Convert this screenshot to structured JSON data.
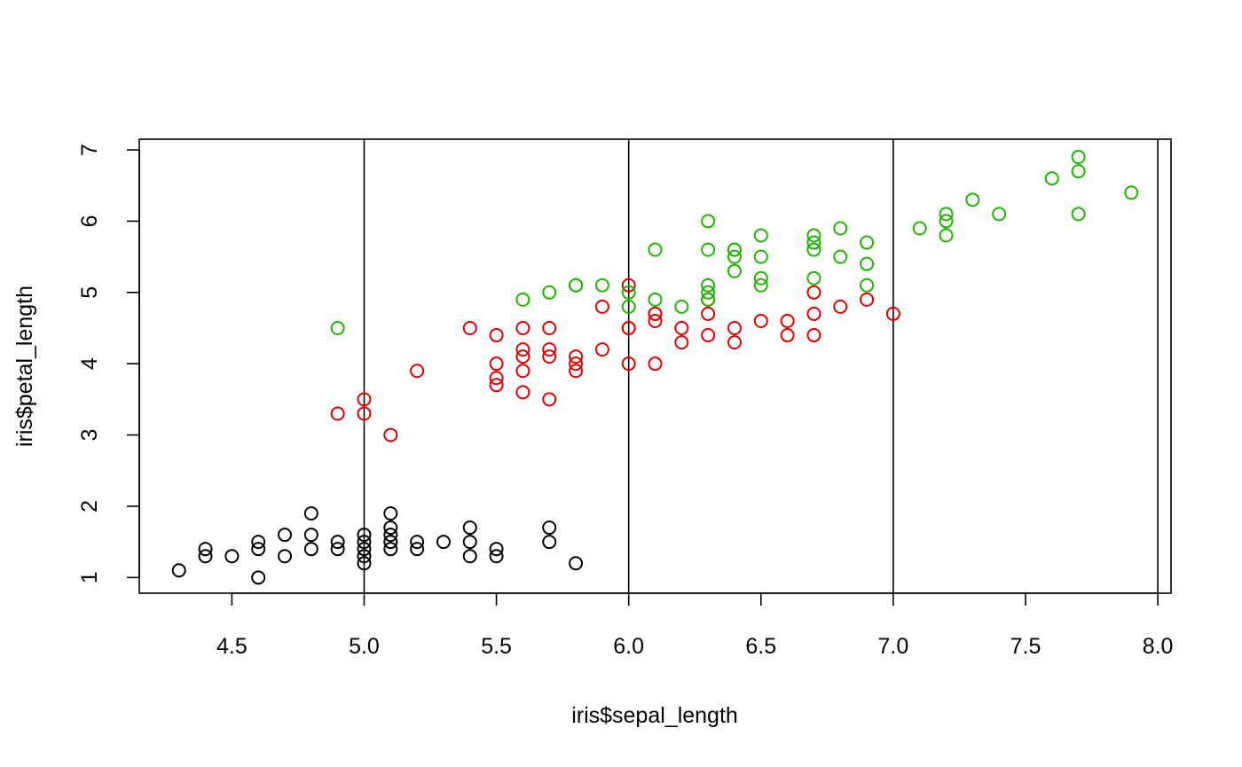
{
  "chart_data": {
    "type": "scatter",
    "title": "",
    "xlabel": "iris$sepal_length",
    "ylabel": "iris$petal_length",
    "xlim": [
      4.15,
      8.05
    ],
    "ylim": [
      0.78,
      7.15
    ],
    "x_ticks": [
      4.5,
      5.0,
      5.5,
      6.0,
      6.5,
      7.0,
      7.5,
      8.0
    ],
    "x_tick_labels": [
      "4.5",
      "5.0",
      "5.5",
      "6.0",
      "6.5",
      "7.0",
      "7.5",
      "8.0"
    ],
    "y_ticks": [
      1,
      2,
      3,
      4,
      5,
      6,
      7
    ],
    "y_tick_labels": [
      "1",
      "2",
      "3",
      "4",
      "5",
      "6",
      "7"
    ],
    "vlines": [
      5.0,
      6.0,
      7.0,
      8.0
    ],
    "grid": false,
    "legend": "none",
    "marker": "open-circle",
    "series": [
      {
        "color": "#000000",
        "x": [
          4.3,
          4.4,
          4.4,
          4.5,
          4.6,
          4.6,
          4.6,
          4.7,
          4.7,
          4.8,
          4.8,
          4.8,
          4.9,
          4.9,
          5.0,
          5.0,
          5.0,
          5.0,
          5.0,
          5.1,
          5.1,
          5.1,
          5.1,
          5.1,
          5.1,
          5.2,
          5.2,
          5.3,
          5.4,
          5.4,
          5.4,
          5.5,
          5.5,
          5.7,
          5.7,
          5.8
        ],
        "y": [
          1.1,
          1.4,
          1.3,
          1.3,
          1.0,
          1.4,
          1.5,
          1.3,
          1.6,
          1.4,
          1.6,
          1.9,
          1.4,
          1.5,
          1.2,
          1.3,
          1.4,
          1.5,
          1.6,
          1.4,
          1.5,
          1.6,
          1.7,
          1.9,
          1.5,
          1.4,
          1.5,
          1.5,
          1.3,
          1.5,
          1.7,
          1.3,
          1.4,
          1.5,
          1.7,
          1.2
        ]
      },
      {
        "color": "#df0000",
        "x": [
          4.9,
          5.0,
          5.0,
          5.1,
          5.2,
          5.4,
          5.5,
          5.5,
          5.5,
          5.5,
          5.6,
          5.6,
          5.6,
          5.6,
          5.6,
          5.7,
          5.7,
          5.7,
          5.7,
          5.8,
          5.8,
          5.8,
          5.9,
          5.9,
          6.0,
          6.0,
          6.0,
          6.1,
          6.1,
          6.1,
          6.1,
          6.2,
          6.2,
          6.3,
          6.3,
          6.3,
          6.4,
          6.4,
          6.5,
          6.6,
          6.6,
          6.7,
          6.7,
          6.7,
          6.8,
          6.9,
          7.0,
          6.0
        ],
        "y": [
          3.3,
          3.3,
          3.5,
          3.0,
          3.9,
          4.5,
          4.4,
          4.0,
          3.8,
          3.7,
          4.5,
          4.2,
          4.1,
          3.9,
          3.6,
          4.5,
          4.2,
          4.1,
          3.5,
          4.1,
          4.0,
          3.9,
          4.8,
          4.2,
          4.5,
          4.0,
          5.1,
          4.7,
          4.6,
          4.7,
          4.0,
          4.5,
          4.3,
          4.9,
          4.7,
          4.4,
          4.5,
          4.3,
          4.6,
          4.6,
          4.4,
          5.0,
          4.7,
          4.4,
          4.8,
          4.9,
          4.7,
          4.5
        ]
      },
      {
        "color": "#1fb400",
        "x": [
          4.9,
          5.6,
          5.7,
          5.8,
          5.8,
          5.9,
          6.0,
          6.0,
          6.1,
          6.1,
          6.2,
          6.3,
          6.3,
          6.3,
          6.3,
          6.3,
          6.4,
          6.4,
          6.4,
          6.4,
          6.5,
          6.5,
          6.5,
          6.5,
          6.7,
          6.7,
          6.7,
          6.7,
          6.7,
          6.8,
          6.8,
          6.9,
          6.9,
          6.9,
          7.1,
          7.2,
          7.2,
          7.2,
          7.3,
          7.4,
          7.6,
          7.7,
          7.7,
          7.7,
          7.9
        ],
        "y": [
          4.5,
          4.9,
          5.0,
          5.1,
          5.1,
          5.1,
          5.0,
          4.8,
          5.6,
          4.9,
          4.8,
          6.0,
          5.6,
          5.1,
          5.0,
          4.9,
          5.6,
          5.5,
          5.3,
          5.6,
          5.8,
          5.5,
          5.2,
          5.1,
          5.8,
          5.7,
          5.6,
          5.2,
          5.7,
          5.9,
          5.5,
          5.7,
          5.4,
          5.1,
          5.9,
          6.1,
          6.0,
          5.8,
          6.3,
          6.1,
          6.6,
          6.9,
          6.7,
          6.1,
          6.4
        ]
      }
    ]
  }
}
